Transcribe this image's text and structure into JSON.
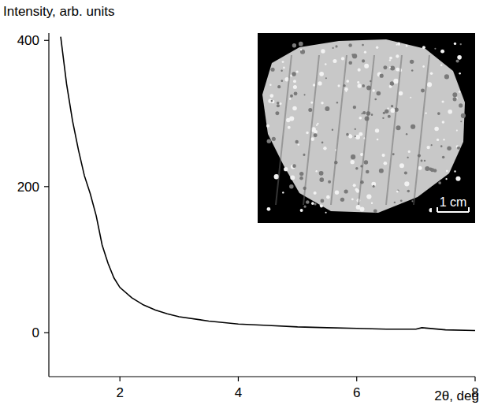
{
  "chart_data": {
    "type": "line",
    "y_label": "Intensity, arb. units",
    "x_label": "2θ, deg",
    "annotations": [
      "1 cm"
    ],
    "x": [
      1.0,
      1.1,
      1.2,
      1.3,
      1.4,
      1.5,
      1.6,
      1.7,
      1.8,
      1.9,
      2.0,
      2.2,
      2.4,
      2.6,
      2.8,
      3.0,
      3.5,
      4.0,
      4.5,
      5.0,
      5.5,
      6.0,
      6.5,
      7.0,
      7.1,
      7.5,
      8.0
    ],
    "values": [
      405,
      340,
      290,
      250,
      215,
      190,
      160,
      120,
      95,
      75,
      62,
      48,
      38,
      31,
      26,
      22,
      16,
      12,
      10,
      8,
      7,
      6,
      5,
      5,
      7,
      4,
      3
    ],
    "color": "#000000",
    "xlim": [
      0.8,
      8
    ],
    "ylim": [
      -60,
      410
    ],
    "xticks": [
      2,
      4,
      6,
      8
    ],
    "yticks": [
      0,
      200,
      400
    ],
    "grid": false
  }
}
